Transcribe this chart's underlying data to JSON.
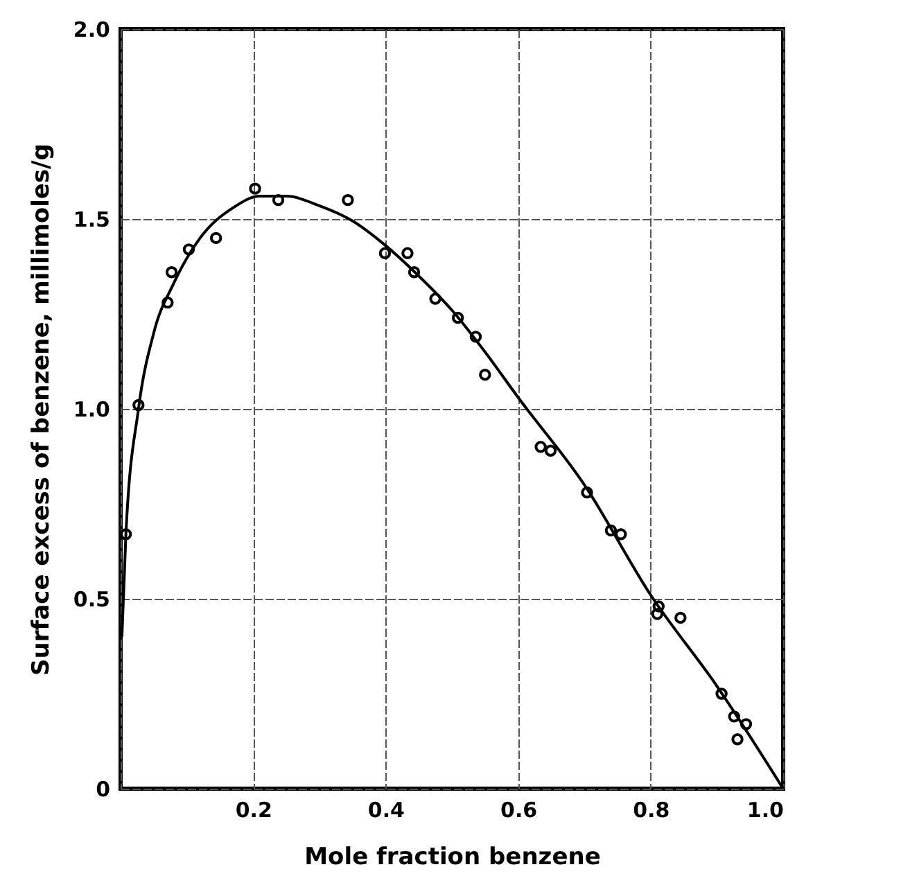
{
  "chart_data": {
    "type": "scatter",
    "xlabel": "Mole fraction benzene",
    "ylabel": "Surface excess of benzene, millimoles/g",
    "xlim": [
      0,
      1
    ],
    "ylim": [
      0,
      2
    ],
    "xticks": [
      {
        "value": 0,
        "label": null
      },
      0.2,
      0.4,
      0.6,
      0.8,
      {
        "value": 1,
        "label": "1.0"
      }
    ],
    "yticks": [
      0,
      0.5,
      {
        "value": 1,
        "label": "1.0"
      },
      1.5,
      {
        "value": 2,
        "label": "2.0"
      }
    ],
    "grid": true,
    "marker": "circle",
    "series": [
      {
        "color": "#000000",
        "x": [
          0.008,
          0.027,
          0.071,
          0.077,
          0.103,
          0.144,
          0.203,
          0.238,
          0.343,
          0.399,
          0.433,
          0.443,
          0.475,
          0.509,
          0.536,
          0.55,
          0.634,
          0.649,
          0.704,
          0.74,
          0.755,
          0.812,
          0.81,
          0.845,
          0.907,
          0.926,
          0.931,
          0.944
        ],
        "values": [
          0.67,
          1.01,
          1.28,
          1.36,
          1.42,
          1.45,
          1.58,
          1.55,
          1.55,
          1.41,
          1.41,
          1.36,
          1.29,
          1.24,
          1.19,
          1.09,
          0.9,
          0.89,
          0.78,
          0.68,
          0.67,
          0.48,
          0.46,
          0.45,
          0.25,
          0.19,
          0.13,
          0.17
        ]
      },
      {
        "type": "line",
        "color": "#000000",
        "marker": "none",
        "line_style": "solid",
        "x": [
          0.002,
          0.008,
          0.027,
          0.05,
          0.08,
          0.12,
          0.17,
          0.21,
          0.25,
          0.3,
          0.35,
          0.4,
          0.45,
          0.5,
          0.55,
          0.6,
          0.7,
          0.8,
          0.9,
          1.0
        ],
        "values": [
          0.4,
          0.67,
          1.0,
          1.2,
          1.33,
          1.45,
          1.53,
          1.56,
          1.56,
          1.535,
          1.495,
          1.43,
          1.35,
          1.26,
          1.15,
          1.03,
          0.8,
          0.51,
          0.27,
          0.0
        ]
      }
    ]
  }
}
